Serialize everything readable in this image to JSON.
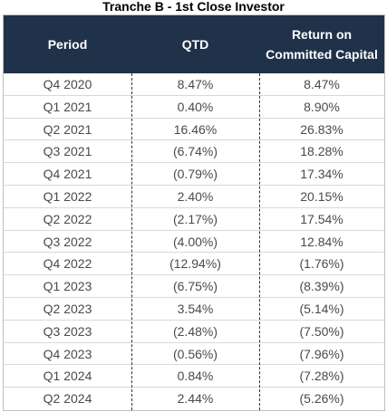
{
  "title": "Tranche B - 1st Close Investor",
  "columns": {
    "period": "Period",
    "qtd": "QTD",
    "roc_line1": "Return on",
    "roc_line2": "Committed Capital"
  },
  "rows": [
    {
      "period": "Q4 2020",
      "qtd": "8.47%",
      "roc": "8.47%"
    },
    {
      "period": "Q1 2021",
      "qtd": "0.40%",
      "roc": "8.90%"
    },
    {
      "period": "Q2 2021",
      "qtd": "16.46%",
      "roc": "26.83%"
    },
    {
      "period": "Q3 2021",
      "qtd": "(6.74%)",
      "roc": "18.28%"
    },
    {
      "period": "Q4 2021",
      "qtd": "(0.79%)",
      "roc": "17.34%"
    },
    {
      "period": "Q1 2022",
      "qtd": "2.40%",
      "roc": "20.15%"
    },
    {
      "period": "Q2 2022",
      "qtd": "(2.17%)",
      "roc": "17.54%"
    },
    {
      "period": "Q3 2022",
      "qtd": "(4.00%)",
      "roc": "12.84%"
    },
    {
      "period": "Q4 2022",
      "qtd": "(12.94%)",
      "roc": "(1.76%)"
    },
    {
      "period": "Q1 2023",
      "qtd": "(6.75%)",
      "roc": "(8.39%)"
    },
    {
      "period": "Q2 2023",
      "qtd": "3.54%",
      "roc": "(5.14%)"
    },
    {
      "period": "Q3 2023",
      "qtd": "(2.48%)",
      "roc": "(7.50%)"
    },
    {
      "period": "Q4 2023",
      "qtd": "(0.56%)",
      "roc": "(7.96%)"
    },
    {
      "period": "Q1 2024",
      "qtd": "0.84%",
      "roc": "(7.28%)"
    },
    {
      "period": "Q2 2024",
      "qtd": "2.44%",
      "roc": "(5.26%)"
    }
  ],
  "colors": {
    "header_bg": "#1f3249",
    "header_text": "#ffffff",
    "body_text": "#4a4a4a"
  }
}
